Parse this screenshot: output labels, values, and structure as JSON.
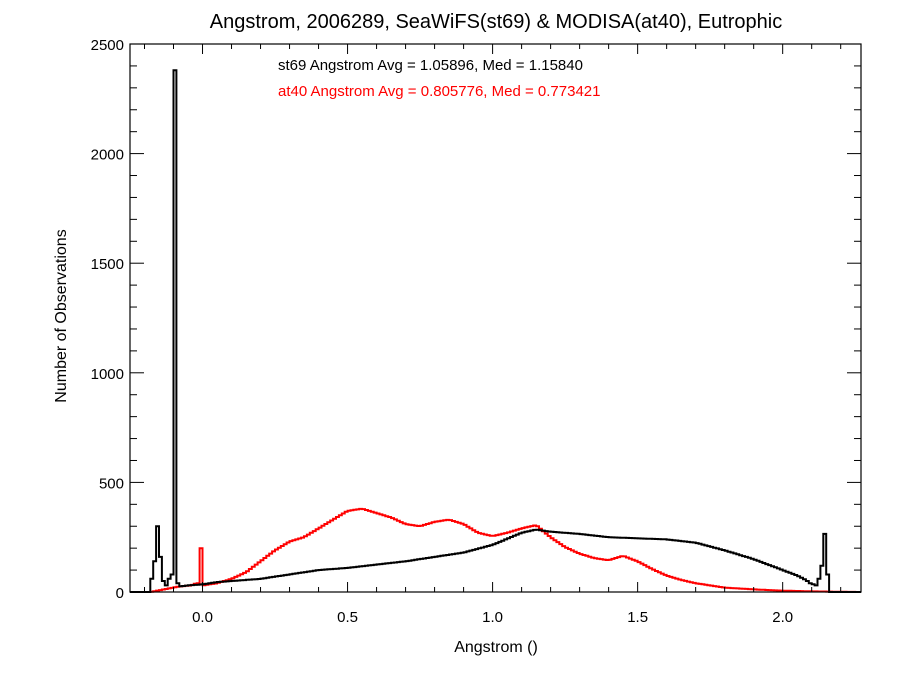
{
  "chart_data": {
    "type": "histogram",
    "title": "Angstrom, 2006289, SeaWiFS(st69) & MODISA(at40), Eutrophic",
    "xlabel": "Angstrom ()",
    "ylabel": "Number of Observations",
    "xlim": [
      -0.25,
      2.27
    ],
    "ylim": [
      0,
      2500
    ],
    "x_ticks": [
      0.0,
      0.5,
      1.0,
      1.5,
      2.0
    ],
    "x_tick_labels": [
      "0.0",
      "0.5",
      "1.0",
      "1.5",
      "2.0"
    ],
    "y_ticks": [
      0,
      500,
      1000,
      1500,
      2000,
      2500
    ],
    "y_tick_labels": [
      "0",
      "500",
      "1000",
      "1500",
      "2000",
      "2500"
    ],
    "grid": false,
    "annotations": [
      {
        "text": "st69 Angstrom Avg = 1.05896, Med = 1.15840",
        "color": "#000000"
      },
      {
        "text": "at40 Angstrom Avg = 0.805776, Med = 0.773421",
        "color": "#ff0000"
      }
    ],
    "series": [
      {
        "color": "#000000",
        "bin_width": 0.01,
        "points": [
          [
            -0.25,
            0
          ],
          [
            -0.19,
            0
          ],
          [
            -0.18,
            60
          ],
          [
            -0.17,
            140
          ],
          [
            -0.16,
            300
          ],
          [
            -0.15,
            160
          ],
          [
            -0.14,
            50
          ],
          [
            -0.13,
            30
          ],
          [
            -0.12,
            60
          ],
          [
            -0.11,
            80
          ],
          [
            -0.1,
            2380
          ],
          [
            -0.09,
            40
          ],
          [
            -0.08,
            25
          ],
          [
            -0.05,
            30
          ],
          [
            0.0,
            35
          ],
          [
            0.05,
            45
          ],
          [
            0.1,
            50
          ],
          [
            0.2,
            60
          ],
          [
            0.3,
            80
          ],
          [
            0.4,
            100
          ],
          [
            0.5,
            110
          ],
          [
            0.6,
            125
          ],
          [
            0.7,
            140
          ],
          [
            0.8,
            160
          ],
          [
            0.9,
            180
          ],
          [
            1.0,
            215
          ],
          [
            1.1,
            270
          ],
          [
            1.15,
            285
          ],
          [
            1.2,
            275
          ],
          [
            1.3,
            265
          ],
          [
            1.4,
            250
          ],
          [
            1.5,
            245
          ],
          [
            1.6,
            240
          ],
          [
            1.7,
            225
          ],
          [
            1.8,
            190
          ],
          [
            1.9,
            150
          ],
          [
            2.0,
            100
          ],
          [
            2.05,
            75
          ],
          [
            2.08,
            55
          ],
          [
            2.1,
            35
          ],
          [
            2.11,
            30
          ],
          [
            2.12,
            60
          ],
          [
            2.13,
            120
          ],
          [
            2.14,
            265
          ],
          [
            2.15,
            80
          ],
          [
            2.16,
            0
          ],
          [
            2.27,
            0
          ]
        ]
      },
      {
        "color": "#ff0000",
        "bin_width": 0.01,
        "points": [
          [
            -0.25,
            0
          ],
          [
            -0.18,
            0
          ],
          [
            -0.16,
            5
          ],
          [
            -0.12,
            15
          ],
          [
            -0.08,
            25
          ],
          [
            -0.04,
            30
          ],
          [
            -0.02,
            40
          ],
          [
            -0.01,
            200
          ],
          [
            0.0,
            30
          ],
          [
            0.05,
            40
          ],
          [
            0.1,
            60
          ],
          [
            0.15,
            90
          ],
          [
            0.2,
            140
          ],
          [
            0.25,
            190
          ],
          [
            0.3,
            230
          ],
          [
            0.35,
            250
          ],
          [
            0.4,
            290
          ],
          [
            0.45,
            330
          ],
          [
            0.5,
            370
          ],
          [
            0.55,
            380
          ],
          [
            0.6,
            360
          ],
          [
            0.65,
            340
          ],
          [
            0.7,
            310
          ],
          [
            0.75,
            300
          ],
          [
            0.8,
            320
          ],
          [
            0.85,
            330
          ],
          [
            0.9,
            310
          ],
          [
            0.95,
            270
          ],
          [
            1.0,
            255
          ],
          [
            1.05,
            270
          ],
          [
            1.1,
            290
          ],
          [
            1.15,
            305
          ],
          [
            1.2,
            250
          ],
          [
            1.25,
            205
          ],
          [
            1.3,
            175
          ],
          [
            1.35,
            155
          ],
          [
            1.4,
            145
          ],
          [
            1.45,
            165
          ],
          [
            1.5,
            140
          ],
          [
            1.55,
            105
          ],
          [
            1.6,
            75
          ],
          [
            1.65,
            55
          ],
          [
            1.7,
            40
          ],
          [
            1.75,
            30
          ],
          [
            1.8,
            20
          ],
          [
            1.9,
            12
          ],
          [
            2.0,
            6
          ],
          [
            2.1,
            3
          ],
          [
            2.2,
            1
          ],
          [
            2.27,
            0
          ]
        ]
      }
    ]
  }
}
